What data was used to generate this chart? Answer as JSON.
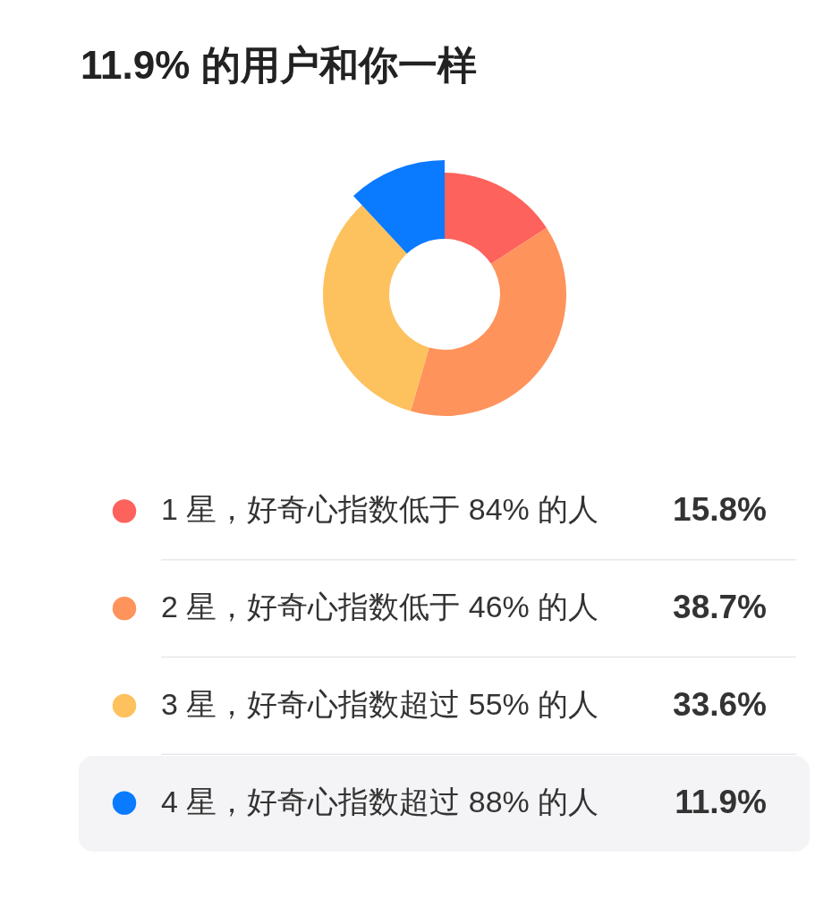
{
  "chart_data": {
    "type": "donut",
    "title": "11.9% 的用户和你一样",
    "categories": [
      "1 星，好奇心指数低于 84% 的人",
      "2 星，好奇心指数低于 46% 的人",
      "3 星，好奇心指数超过 55% 的人",
      "4 星，好奇心指数超过 88% 的人"
    ],
    "values": [
      15.8,
      38.7,
      33.6,
      11.9
    ],
    "value_labels": [
      "15.8%",
      "38.7%",
      "33.6%",
      "11.9%"
    ],
    "colors": [
      "#fe625c",
      "#fe935c",
      "#fdc15e",
      "#0a7aff"
    ],
    "legend": "bottom"
  }
}
